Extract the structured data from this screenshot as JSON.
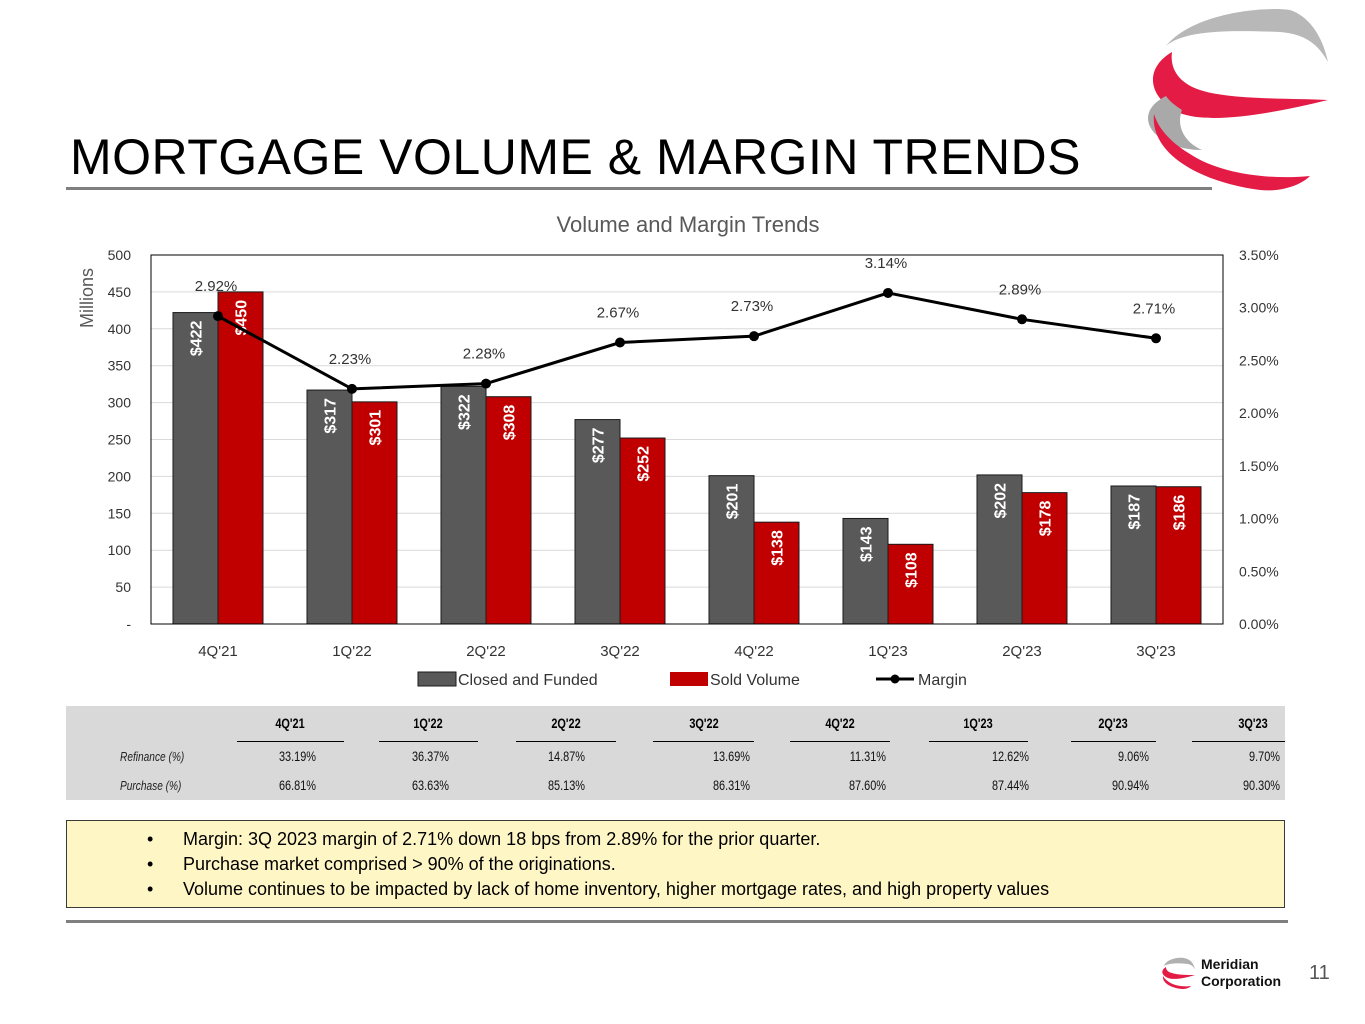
{
  "page": {
    "title": "MORTGAGE VOLUME & MARGIN TRENDS",
    "page_number": "11",
    "company_line1": "Meridian",
    "company_line2": "Corporation",
    "brand_red": "#e31b45",
    "brand_gray": "#9e9e9e"
  },
  "chart_data": {
    "type": "bar",
    "title": "Volume and Margin Trends",
    "ylabel": "Millions",
    "ylim": [
      0,
      500
    ],
    "y_ticks": [
      "-",
      "50",
      "100",
      "150",
      "200",
      "250",
      "300",
      "350",
      "400",
      "450",
      "500"
    ],
    "y2lim": [
      0,
      3.5
    ],
    "y2_ticks": [
      "0.00%",
      "0.50%",
      "1.00%",
      "1.50%",
      "2.00%",
      "2.50%",
      "3.00%",
      "3.50%"
    ],
    "categories": [
      "4Q'21",
      "1Q'22",
      "2Q'22",
      "3Q'22",
      "4Q'22",
      "1Q'23",
      "2Q'23",
      "3Q'23"
    ],
    "series": [
      {
        "name": "Closed and Funded",
        "type": "bar",
        "color": "#595959",
        "values": [
          422,
          317,
          322,
          277,
          201,
          143,
          202,
          187
        ],
        "labels": [
          "$422",
          "$317",
          "$322",
          "$277",
          "$201",
          "$143",
          "$202",
          "$187"
        ]
      },
      {
        "name": "Sold Volume",
        "type": "bar",
        "color": "#c00000",
        "values": [
          450,
          301,
          308,
          252,
          138,
          108,
          178,
          186
        ],
        "labels": [
          "$450",
          "$301",
          "$308",
          "$252",
          "$138",
          "$108",
          "$178",
          "$186"
        ]
      },
      {
        "name": "Margin",
        "type": "line",
        "axis": "right",
        "color": "#000000",
        "values": [
          2.92,
          2.23,
          2.28,
          2.67,
          2.73,
          3.14,
          2.89,
          2.71
        ],
        "labels": [
          "2.92%",
          "2.23%",
          "2.28%",
          "2.67%",
          "2.73%",
          "3.14%",
          "2.89%",
          "2.71%"
        ]
      }
    ],
    "legend": [
      "Closed and Funded",
      "Sold Volume",
      "Margin"
    ],
    "legend_position": "bottom",
    "grid": true
  },
  "table": {
    "headers": [
      "4Q'21",
      "1Q'22",
      "2Q'22",
      "3Q'22",
      "4Q'22",
      "1Q'23",
      "2Q'23",
      "3Q'23"
    ],
    "rows": [
      {
        "label": "Refinance (%)",
        "values": [
          "33.19%",
          "36.37%",
          "14.87%",
          "13.69%",
          "11.31%",
          "12.62%",
          "9.06%",
          "9.70%"
        ]
      },
      {
        "label": "Purchase (%)",
        "values": [
          "66.81%",
          "63.63%",
          "85.13%",
          "86.31%",
          "87.60%",
          "87.44%",
          "90.94%",
          "90.30%"
        ]
      }
    ]
  },
  "notes": {
    "bullet": "•",
    "items": [
      "Margin: 3Q 2023 margin of 2.71% down 18 bps from 2.89% for the prior quarter.",
      "Purchase market comprised > 90% of the originations.",
      "Volume continues to be impacted by lack of home inventory, higher mortgage rates, and high property values"
    ]
  }
}
